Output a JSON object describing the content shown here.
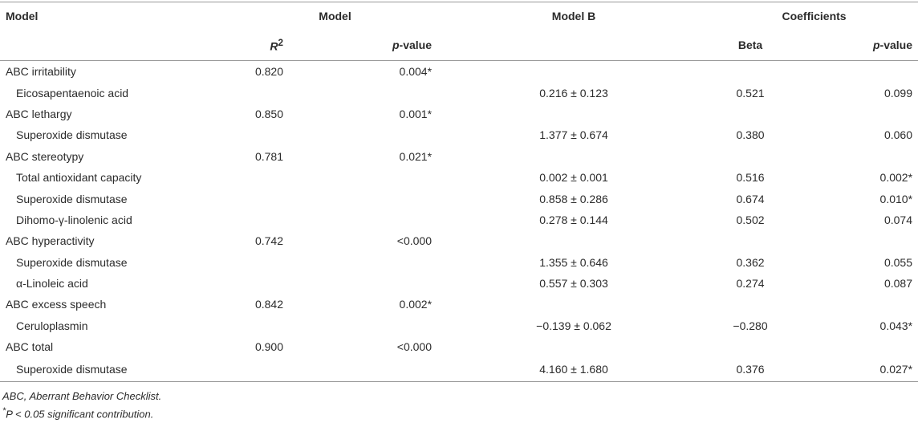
{
  "table": {
    "header": {
      "model": "Model",
      "model_group": "Model",
      "model_b": "Model B",
      "coefficients": "Coefficients",
      "r2": {
        "base": "R",
        "sup": "2"
      },
      "pvalue": {
        "italic": "p",
        "rest": "-value"
      },
      "beta": "Beta",
      "pvalue2": {
        "italic": "p",
        "rest": "-value"
      }
    },
    "rows": [
      {
        "label": "ABC irritability",
        "r2": "0.820",
        "p": "0.004*"
      },
      {
        "label": "Eicosapentaenoic acid",
        "b": "0.216 ± 0.123",
        "beta": "0.521",
        "p2": "0.099"
      },
      {
        "label": "ABC lethargy",
        "r2": "0.850",
        "p": "0.001*"
      },
      {
        "label": "Superoxide dismutase",
        "b": "1.377 ± 0.674",
        "beta": "0.380",
        "p2": "0.060"
      },
      {
        "label": "ABC stereotypy",
        "r2": "0.781",
        "p": "0.021*"
      },
      {
        "label": "Total antioxidant capacity",
        "b": "0.002 ± 0.001",
        "beta": "0.516",
        "p2": "0.002*"
      },
      {
        "label": "Superoxide dismutase",
        "b": "0.858 ± 0.286",
        "beta": "0.674",
        "p2": "0.010*"
      },
      {
        "label": "Dihomo-γ-linolenic acid",
        "b": "0.278 ± 0.144",
        "beta": "0.502",
        "p2": "0.074"
      },
      {
        "label": "ABC hyperactivity",
        "r2": "0.742",
        "p": "<0.000"
      },
      {
        "label": "Superoxide dismutase",
        "b": "1.355 ± 0.646",
        "beta": "0.362",
        "p2": "0.055"
      },
      {
        "label": "α-Linoleic acid",
        "b": "0.557 ± 0.303",
        "beta": "0.274",
        "p2": "0.087"
      },
      {
        "label": "ABC excess speech",
        "r2": "0.842",
        "p": "0.002*"
      },
      {
        "label": "Ceruloplasmin",
        "b": "−0.139 ± 0.062",
        "beta": "−0.280",
        "p2": "0.043*"
      },
      {
        "label": "ABC total",
        "r2": "0.900",
        "p": "<0.000"
      },
      {
        "label": "Superoxide dismutase",
        "b": "4.160 ± 1.680",
        "beta": "0.376",
        "p2": "0.027*"
      }
    ]
  },
  "footnotes": [
    "ABC, Aberrant Behavior Checklist.",
    {
      "sup": "*",
      "text": "P < 0.05 significant contribution."
    }
  ]
}
